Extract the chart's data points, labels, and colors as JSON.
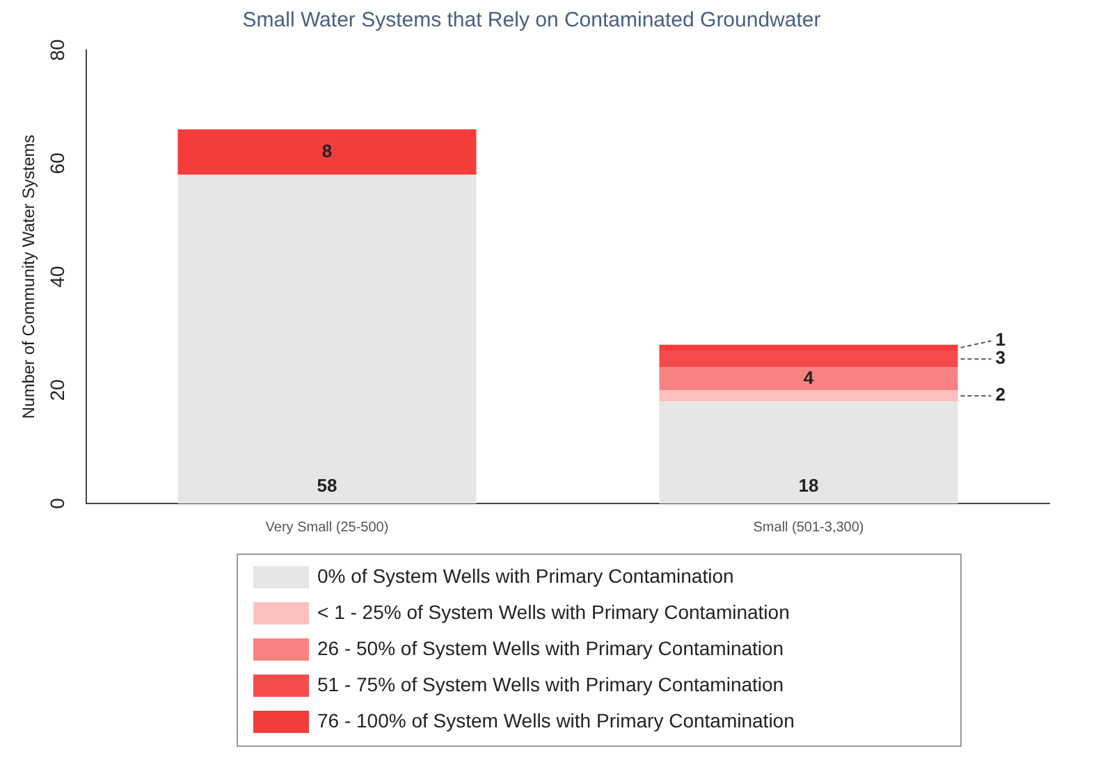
{
  "chart_data": {
    "type": "bar",
    "title": "Small Water Systems that Rely on Contaminated Groundwater",
    "ylabel": "Number of Community Water Systems",
    "categories": [
      "Very Small (25-500)",
      "Small (501-3,300)"
    ],
    "stacked": true,
    "ylim": [
      0,
      80
    ],
    "yticks": [
      0,
      20,
      40,
      60,
      80
    ],
    "grid": false,
    "legend": "bottom",
    "series": [
      {
        "name": "0% of System Wells with Primary Contamination",
        "color": "#e6e6e6",
        "values": [
          58,
          18
        ],
        "value_labels": [
          "58",
          "18"
        ]
      },
      {
        "name": "< 1 - 25% of System Wells with Primary Contamination",
        "color": "#fcc0c0",
        "values": [
          0,
          2
        ],
        "value_labels": [
          null,
          "2"
        ]
      },
      {
        "name": "26 - 50% of System Wells with Primary Contamination",
        "color": "#f88282",
        "values": [
          0,
          4
        ],
        "value_labels": [
          null,
          "4"
        ]
      },
      {
        "name": "51 - 75% of System Wells with Primary Contamination",
        "color": "#f44c4c",
        "values": [
          0,
          3
        ],
        "value_labels": [
          null,
          "3"
        ]
      },
      {
        "name": "76 - 100% of System Wells with Primary Contamination",
        "color": "#f43c3c",
        "values": [
          8,
          1
        ],
        "value_labels": [
          "8",
          "1"
        ]
      }
    ]
  }
}
